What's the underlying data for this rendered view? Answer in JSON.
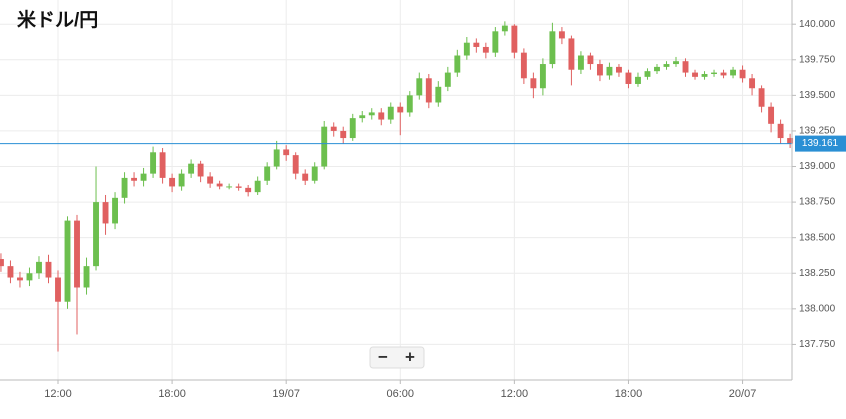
{
  "chart_data": {
    "type": "candlestick",
    "title": "米ドル/円",
    "up_color": "#6cbf4e",
    "down_color": "#e06060",
    "grid": true,
    "xlim": [
      -15.05,
      26.6
    ],
    "ylim": [
      137.5,
      140.17
    ],
    "xticks": [
      {
        "value": -12,
        "label": "12:00"
      },
      {
        "value": -6,
        "label": "18:00"
      },
      {
        "value": 0,
        "label": "19/07"
      },
      {
        "value": 6,
        "label": "06:00"
      },
      {
        "value": 12,
        "label": "12:00"
      },
      {
        "value": 18,
        "label": "18:00"
      },
      {
        "value": 24,
        "label": "20/07"
      }
    ],
    "yticks": [
      {
        "value": 137.75,
        "label": "137.750"
      },
      {
        "value": 138,
        "label": "138.000"
      },
      {
        "value": 138.25,
        "label": "138.250"
      },
      {
        "value": 138.5,
        "label": "138.500"
      },
      {
        "value": 138.75,
        "label": "138.750"
      },
      {
        "value": 139,
        "label": "139.000"
      },
      {
        "value": 139.25,
        "label": "139.250"
      },
      {
        "value": 139.5,
        "label": "139.500"
      },
      {
        "value": 139.75,
        "label": "139.750"
      },
      {
        "value": 140,
        "label": "140.000"
      }
    ],
    "current_price": 139.161,
    "current_price_color": "#2a8fd4",
    "zoom_controls": [
      "−",
      "+"
    ],
    "x": [
      -15,
      -14.5,
      -14,
      -13.5,
      -13,
      -12.5,
      -12,
      -11.5,
      -11,
      -10.5,
      -10,
      -9.5,
      -9,
      -8.5,
      -8,
      -7.5,
      -7,
      -6.5,
      -6,
      -5.5,
      -5,
      -4.5,
      -4,
      -3.5,
      -3,
      -2.5,
      -2,
      -1.5,
      -1,
      -0.5,
      0,
      0.5,
      1,
      1.5,
      2,
      2.5,
      3,
      3.5,
      4,
      4.5,
      5,
      5.5,
      6,
      6.5,
      7,
      7.5,
      8,
      8.5,
      9,
      9.5,
      10,
      10.5,
      11,
      11.5,
      12,
      12.5,
      13,
      13.5,
      14,
      14.5,
      15,
      15.5,
      16,
      16.5,
      17,
      17.5,
      18,
      18.5,
      19,
      19.5,
      20,
      20.5,
      21,
      21.5,
      22,
      22.5,
      23,
      23.5,
      24,
      24.5,
      25,
      25.5,
      26,
      26.5
    ],
    "open": [
      138.35,
      138.3,
      138.22,
      138.2,
      138.25,
      138.33,
      138.22,
      138.05,
      138.62,
      138.15,
      138.3,
      138.75,
      138.6,
      138.78,
      138.92,
      138.9,
      138.95,
      139.1,
      138.92,
      138.86,
      138.95,
      139.02,
      138.93,
      138.88,
      138.86,
      138.86,
      138.85,
      138.82,
      138.9,
      139.0,
      139.12,
      139.08,
      138.95,
      138.9,
      139.0,
      139.28,
      139.25,
      139.2,
      139.34,
      139.36,
      139.38,
      139.33,
      139.42,
      139.38,
      139.5,
      139.62,
      139.45,
      139.56,
      139.66,
      139.78,
      139.87,
      139.84,
      139.8,
      139.95,
      139.99,
      139.8,
      139.62,
      139.55,
      139.72,
      139.95,
      139.9,
      139.68,
      139.78,
      139.72,
      139.64,
      139.7,
      139.66,
      139.58,
      139.63,
      139.67,
      139.7,
      139.72,
      139.74,
      139.66,
      139.63,
      139.65,
      139.66,
      139.64,
      139.68,
      139.62,
      139.55,
      139.42,
      139.3,
      139.2
    ],
    "high": [
      138.39,
      138.34,
      138.26,
      138.29,
      138.37,
      138.38,
      138.27,
      138.65,
      138.66,
      138.36,
      139.0,
      138.8,
      138.82,
      138.96,
      138.96,
      138.99,
      139.14,
      139.13,
      138.95,
      138.98,
      139.05,
      139.04,
      138.96,
      138.9,
      138.88,
      138.88,
      138.87,
      138.93,
      139.03,
      139.18,
      139.15,
      139.1,
      138.98,
      139.03,
      139.32,
      139.31,
      139.28,
      139.37,
      139.39,
      139.41,
      139.41,
      139.45,
      139.45,
      139.53,
      139.66,
      139.65,
      139.6,
      139.7,
      139.82,
      139.91,
      139.9,
      139.87,
      139.98,
      140.02,
      140.0,
      139.83,
      139.66,
      139.76,
      140.01,
      139.98,
      139.92,
      139.81,
      139.8,
      139.75,
      139.73,
      139.72,
      139.68,
      139.66,
      139.69,
      139.72,
      139.74,
      139.77,
      139.76,
      139.68,
      139.67,
      139.68,
      139.68,
      139.7,
      139.71,
      139.65,
      139.57,
      139.45,
      139.33,
      139.23
    ],
    "low": [
      138.26,
      138.18,
      138.15,
      138.16,
      138.21,
      138.18,
      137.7,
      138.0,
      137.82,
      138.1,
      138.27,
      138.52,
      138.56,
      138.74,
      138.86,
      138.86,
      138.92,
      138.88,
      138.82,
      138.83,
      138.92,
      138.89,
      138.85,
      138.84,
      138.84,
      138.83,
      138.79,
      138.8,
      138.87,
      138.98,
      139.04,
      138.91,
      138.87,
      138.88,
      138.98,
      139.21,
      139.16,
      139.18,
      139.31,
      139.33,
      139.29,
      139.3,
      139.22,
      139.35,
      139.47,
      139.41,
      139.42,
      139.53,
      139.63,
      139.75,
      139.8,
      139.76,
      139.77,
      139.92,
      139.76,
      139.58,
      139.48,
      139.5,
      139.69,
      139.86,
      139.57,
      139.65,
      139.68,
      139.6,
      139.61,
      139.63,
      139.55,
      139.56,
      139.61,
      139.65,
      139.68,
      139.7,
      139.63,
      139.61,
      139.61,
      139.63,
      139.62,
      139.62,
      139.59,
      139.5,
      139.38,
      139.24,
      139.16,
      139.13
    ],
    "close": [
      138.3,
      138.22,
      138.2,
      138.25,
      138.33,
      138.22,
      138.05,
      138.62,
      138.15,
      138.3,
      138.75,
      138.6,
      138.78,
      138.92,
      138.9,
      138.95,
      139.1,
      138.92,
      138.86,
      138.95,
      139.02,
      138.93,
      138.88,
      138.86,
      138.86,
      138.85,
      138.82,
      138.9,
      139.0,
      139.12,
      139.08,
      138.95,
      138.9,
      139.0,
      139.28,
      139.25,
      139.2,
      139.34,
      139.36,
      139.38,
      139.33,
      139.42,
      139.38,
      139.5,
      139.62,
      139.45,
      139.56,
      139.66,
      139.78,
      139.87,
      139.84,
      139.8,
      139.95,
      139.99,
      139.8,
      139.62,
      139.55,
      139.72,
      139.95,
      139.9,
      139.68,
      139.78,
      139.72,
      139.64,
      139.7,
      139.66,
      139.58,
      139.63,
      139.67,
      139.7,
      139.72,
      139.74,
      139.66,
      139.63,
      139.65,
      139.66,
      139.64,
      139.68,
      139.62,
      139.55,
      139.42,
      139.3,
      139.2,
      139.161
    ]
  }
}
